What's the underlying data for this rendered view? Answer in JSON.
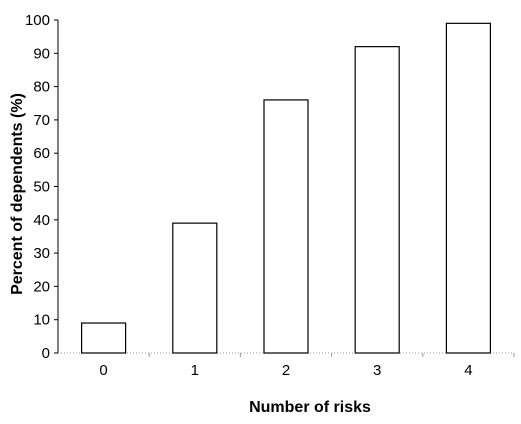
{
  "chart_data": {
    "type": "bar",
    "title": "",
    "xlabel": "Number of risks",
    "ylabel": "Percent of dependents (%)",
    "categories": [
      "0",
      "1",
      "2",
      "3",
      "4"
    ],
    "values": [
      9,
      39,
      76,
      92,
      99
    ],
    "ylim": [
      0,
      100
    ],
    "yticks": [
      0,
      10,
      20,
      30,
      40,
      50,
      60,
      70,
      80,
      90,
      100
    ],
    "grid": false,
    "legend": "none",
    "bar_fill": "#ffffff",
    "bar_stroke": "#000000"
  }
}
